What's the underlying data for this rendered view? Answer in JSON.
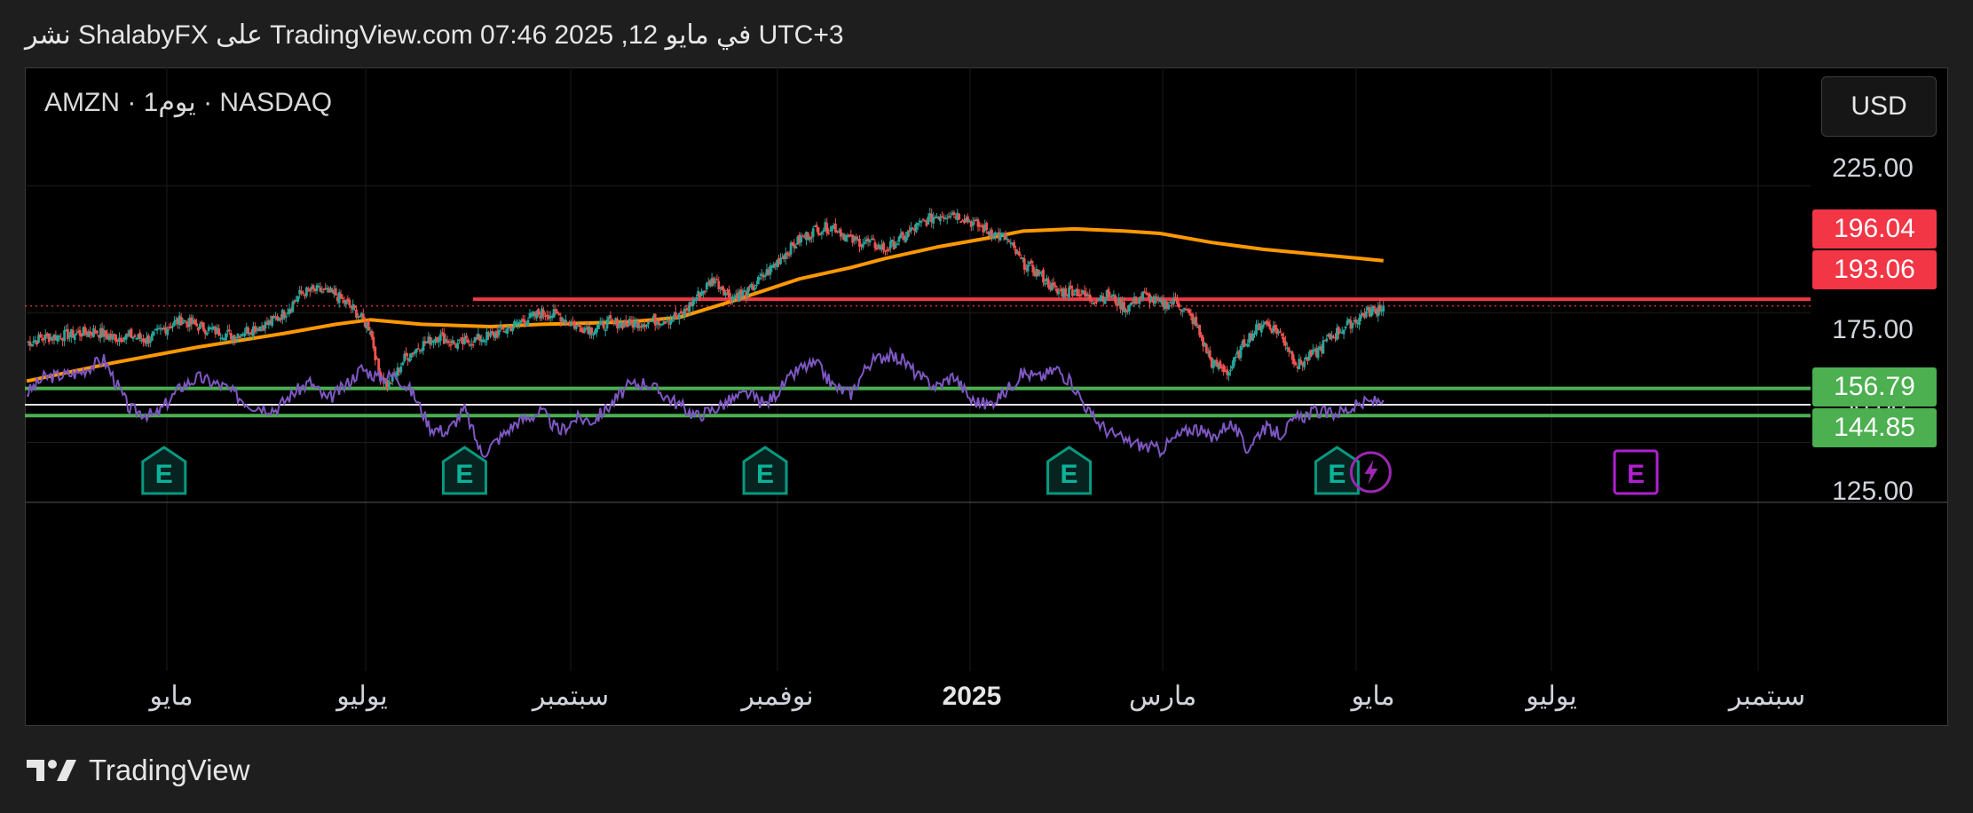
{
  "header": {
    "text": "نشر ShalabyFX على TradingView.com 07:46 2025 ,12 في مايو UTC+3"
  },
  "symbol_label": "AMZN · 1يوم · NASDAQ",
  "currency_button": "USD",
  "price_tags": [
    {
      "value": "196.04",
      "color": "#f23645"
    },
    {
      "value": "193.06",
      "color": "#f23645"
    },
    {
      "value": "156.79",
      "color": "#4caf50"
    },
    {
      "value": "144.85",
      "color": "#4caf50"
    }
  ],
  "footer": {
    "brand": "TradingView"
  },
  "chart_data": {
    "type": "candlestick",
    "symbol": "AMZN",
    "interval": "1 يوم",
    "exchange": "NASDAQ",
    "currency": "USD",
    "price_axis": {
      "ticks": [
        "225.00",
        "175.00",
        "125.00"
      ],
      "range": [
        113,
        261
      ]
    },
    "time_axis": {
      "labels": [
        "مايو",
        "يوليو",
        "سبتمبر",
        "نوفمبر",
        "2025",
        "مارس",
        "مايو",
        "يوليو",
        "سبتمبر"
      ],
      "bold_label": "2025"
    },
    "horizontal_levels": [
      {
        "price": 196.04,
        "color": "#f23645"
      },
      {
        "price": 156.79,
        "color": "#4caf50"
      },
      {
        "price": 144.85,
        "color": "#4caf50"
      }
    ],
    "last_price": 193.06,
    "price_path_anchors": [
      [
        0,
        177
      ],
      [
        10,
        179
      ],
      [
        20,
        180
      ],
      [
        30,
        181
      ],
      [
        40,
        182
      ],
      [
        50,
        179
      ],
      [
        60,
        180
      ],
      [
        70,
        178
      ],
      [
        80,
        183
      ],
      [
        90,
        187
      ],
      [
        100,
        184
      ],
      [
        110,
        182
      ],
      [
        120,
        180
      ],
      [
        130,
        183
      ],
      [
        140,
        185
      ],
      [
        150,
        190
      ],
      [
        160,
        199
      ],
      [
        170,
        200
      ],
      [
        180,
        198
      ],
      [
        190,
        192
      ],
      [
        200,
        183
      ],
      [
        205,
        164
      ],
      [
        210,
        158
      ],
      [
        215,
        163
      ],
      [
        220,
        170
      ],
      [
        230,
        176
      ],
      [
        240,
        180
      ],
      [
        250,
        176
      ],
      [
        260,
        178
      ],
      [
        270,
        180
      ],
      [
        280,
        183
      ],
      [
        290,
        187
      ],
      [
        300,
        190
      ],
      [
        310,
        189
      ],
      [
        320,
        184
      ],
      [
        330,
        183
      ],
      [
        340,
        186
      ],
      [
        350,
        185
      ],
      [
        360,
        186
      ],
      [
        370,
        187
      ],
      [
        380,
        188
      ],
      [
        390,
        197
      ],
      [
        400,
        205
      ],
      [
        410,
        197
      ],
      [
        420,
        199
      ],
      [
        430,
        207
      ],
      [
        440,
        215
      ],
      [
        450,
        222
      ],
      [
        460,
        227
      ],
      [
        470,
        228
      ],
      [
        480,
        222
      ],
      [
        490,
        221
      ],
      [
        500,
        218
      ],
      [
        510,
        223
      ],
      [
        520,
        229
      ],
      [
        530,
        233
      ],
      [
        540,
        234
      ],
      [
        550,
        230
      ],
      [
        560,
        226
      ],
      [
        570,
        223
      ],
      [
        580,
        212
      ],
      [
        590,
        207
      ],
      [
        600,
        199
      ],
      [
        610,
        200
      ],
      [
        620,
        196
      ],
      [
        630,
        198
      ],
      [
        640,
        192
      ],
      [
        650,
        198
      ],
      [
        660,
        194
      ],
      [
        670,
        195
      ],
      [
        680,
        186
      ],
      [
        690,
        168
      ],
      [
        700,
        164
      ],
      [
        710,
        178
      ],
      [
        720,
        186
      ],
      [
        730,
        181
      ],
      [
        740,
        167
      ],
      [
        750,
        172
      ],
      [
        760,
        180
      ],
      [
        770,
        185
      ],
      [
        780,
        190
      ],
      [
        790,
        193
      ]
    ],
    "moving_average": {
      "color": "#ff9800",
      "values": [
        [
          0,
          160
        ],
        [
          50,
          168
        ],
        [
          100,
          175
        ],
        [
          150,
          181
        ],
        [
          180,
          185
        ],
        [
          200,
          187
        ],
        [
          230,
          185
        ],
        [
          270,
          184
        ],
        [
          300,
          185
        ],
        [
          350,
          186
        ],
        [
          380,
          188
        ],
        [
          410,
          195
        ],
        [
          450,
          205
        ],
        [
          480,
          210
        ],
        [
          500,
          214
        ],
        [
          530,
          219
        ],
        [
          560,
          223
        ],
        [
          580,
          226
        ],
        [
          610,
          227
        ],
        [
          640,
          226
        ],
        [
          660,
          225
        ],
        [
          690,
          221
        ],
        [
          720,
          218
        ],
        [
          790,
          213
        ]
      ]
    },
    "earnings_markers": [
      {
        "bar": 80,
        "label": "E"
      },
      {
        "bar": 255,
        "label": "E"
      },
      {
        "bar": 430,
        "label": "E"
      },
      {
        "bar": 607,
        "label": "E"
      },
      {
        "bar": 763,
        "label": "E"
      },
      {
        "bar": 937,
        "label": "E",
        "future": true
      }
    ],
    "rsi": {
      "color": "#7e57c2",
      "reference_level": "50.00",
      "anchors": [
        [
          0,
          55
        ],
        [
          10,
          62
        ],
        [
          30,
          64
        ],
        [
          45,
          70
        ],
        [
          60,
          48
        ],
        [
          75,
          45
        ],
        [
          90,
          58
        ],
        [
          100,
          62
        ],
        [
          115,
          58
        ],
        [
          130,
          50
        ],
        [
          145,
          48
        ],
        [
          155,
          55
        ],
        [
          165,
          60
        ],
        [
          175,
          52
        ],
        [
          185,
          58
        ],
        [
          195,
          66
        ],
        [
          205,
          62
        ],
        [
          215,
          63
        ],
        [
          225,
          55
        ],
        [
          235,
          40
        ],
        [
          245,
          38
        ],
        [
          255,
          48
        ],
        [
          265,
          28
        ],
        [
          275,
          35
        ],
        [
          285,
          42
        ],
        [
          300,
          47
        ],
        [
          310,
          38
        ],
        [
          320,
          44
        ],
        [
          330,
          43
        ],
        [
          340,
          50
        ],
        [
          350,
          58
        ],
        [
          360,
          60
        ],
        [
          370,
          55
        ],
        [
          380,
          50
        ],
        [
          390,
          45
        ],
        [
          400,
          48
        ],
        [
          410,
          52
        ],
        [
          420,
          55
        ],
        [
          430,
          50
        ],
        [
          440,
          58
        ],
        [
          450,
          66
        ],
        [
          460,
          68
        ],
        [
          470,
          58
        ],
        [
          480,
          55
        ],
        [
          490,
          68
        ],
        [
          500,
          72
        ],
        [
          510,
          70
        ],
        [
          520,
          62
        ],
        [
          530,
          58
        ],
        [
          540,
          63
        ],
        [
          550,
          52
        ],
        [
          560,
          50
        ],
        [
          570,
          56
        ],
        [
          580,
          64
        ],
        [
          590,
          62
        ],
        [
          600,
          66
        ],
        [
          610,
          58
        ],
        [
          620,
          45
        ],
        [
          630,
          38
        ],
        [
          640,
          34
        ],
        [
          650,
          32
        ],
        [
          660,
          30
        ],
        [
          670,
          36
        ],
        [
          680,
          40
        ],
        [
          690,
          35
        ],
        [
          700,
          42
        ],
        [
          705,
          38
        ],
        [
          710,
          30
        ],
        [
          720,
          40
        ],
        [
          730,
          37
        ],
        [
          740,
          44
        ],
        [
          750,
          47
        ],
        [
          760,
          46
        ],
        [
          770,
          48
        ],
        [
          780,
          51
        ],
        [
          790,
          52
        ]
      ]
    }
  }
}
